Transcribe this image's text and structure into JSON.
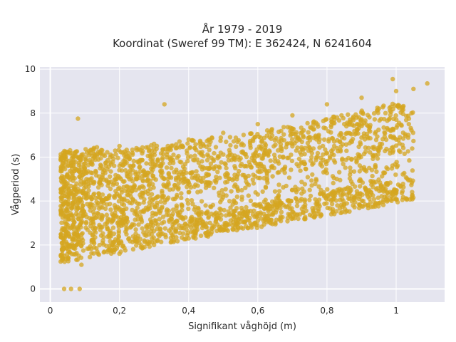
{
  "chart_data": {
    "type": "scatter",
    "title": "År 1979 - 2019",
    "subtitle": "Koordinat (Sweref 99 TM): E 362424, N 6241604",
    "xlabel": "Signifikant våghöjd (m)",
    "ylabel": "Vågperiod (s)",
    "xlim": [
      -0.03,
      1.14
    ],
    "ylim": [
      -0.6,
      10.1
    ],
    "x_ticks": [
      0,
      0.2,
      0.4,
      0.6,
      0.8,
      1
    ],
    "x_tick_labels": [
      "0",
      "0,2",
      "0,4",
      "0,6",
      "0,8",
      "1"
    ],
    "y_ticks": [
      0,
      2,
      4,
      6,
      8,
      10
    ],
    "y_tick_labels": [
      "0",
      "2",
      "4",
      "6",
      "8",
      "10"
    ],
    "grid": true,
    "legend": "none",
    "marker_color": "#D4A520",
    "background_color": "#E5E5EF",
    "series": [
      {
        "values_xy": [
          [
            0.04,
            0.0
          ],
          [
            0.06,
            0.0
          ],
          [
            0.085,
            0.0
          ],
          [
            0.08,
            7.75
          ],
          [
            0.33,
            8.4
          ],
          [
            0.05,
            4.6
          ],
          [
            0.04,
            1.5
          ],
          [
            0.09,
            1.1
          ],
          [
            0.2,
            1.6
          ],
          [
            0.3,
            2.0
          ],
          [
            0.4,
            2.3
          ],
          [
            0.5,
            2.7
          ],
          [
            0.6,
            3.1
          ],
          [
            0.7,
            3.5
          ],
          [
            0.2,
            6.5
          ],
          [
            0.3,
            6.6
          ],
          [
            0.4,
            6.8
          ],
          [
            0.5,
            7.1
          ],
          [
            0.6,
            7.5
          ],
          [
            0.7,
            7.9
          ],
          [
            0.8,
            8.4
          ],
          [
            0.9,
            8.7
          ],
          [
            1.0,
            9.0
          ],
          [
            1.05,
            9.1
          ],
          [
            1.09,
            9.35
          ],
          [
            0.99,
            9.55
          ],
          [
            0.5,
            4.3
          ],
          [
            0.6,
            4.3
          ],
          [
            0.7,
            4.5
          ],
          [
            0.75,
            4.5
          ],
          [
            0.15,
            4.0
          ],
          [
            0.25,
            5.0
          ],
          [
            0.35,
            5.5
          ],
          [
            0.45,
            4.6
          ],
          [
            0.55,
            5.6
          ],
          [
            0.65,
            5.8
          ],
          [
            0.85,
            7.5
          ],
          [
            0.95,
            8.2
          ]
        ]
      }
    ]
  }
}
